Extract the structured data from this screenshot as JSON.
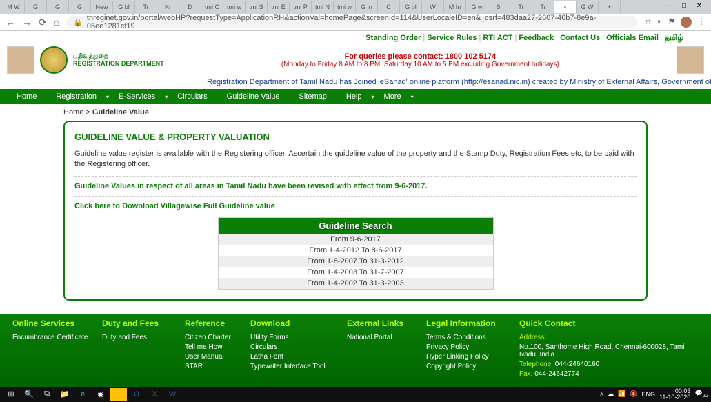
{
  "browser": {
    "tabs": [
      "M W",
      "G",
      "G",
      "G",
      "New",
      "G bl",
      "Tr",
      "Kr",
      "D",
      "tmi C",
      "tmi w",
      "tmi S",
      "tmi E",
      "tmi P",
      "tmi N",
      "tmi w",
      "G in",
      "C",
      "G bl",
      "W",
      "M In",
      "G w",
      "Si",
      "Tr",
      "Tr",
      "×",
      "G W",
      "+"
    ],
    "url": "tnreginet.gov.in/portal/webHP?requestType=ApplicationRH&actionVal=homePage&screenId=114&UserLocaleID=en&_csrf=483daa27-2607-46b7-8e9a-05ee1281cf19"
  },
  "toplinks": {
    "standing": "Standing Order",
    "rules": "Service Rules",
    "rti": "RTI ACT",
    "feedback": "Feedback",
    "contact": "Contact Us",
    "email": "Officials Email",
    "tamil": "தமிழ்"
  },
  "header": {
    "dept1": "பதிவுத்துறை",
    "dept2": "REGISTRATION DEPARTMENT",
    "query": "For queries please contact:",
    "phone": "1800 102 5174",
    "hours": "(Monday to Friday 8 AM to 8 PM, Saturday 10 AM to 5 PM excluding Government holidays)"
  },
  "marquee": "Registration Department of Tamil Nadu has Joined 'eSanad' online platform (http://esanad.nic.in) created by Ministry of External Affairs, Government of India to authenticate a",
  "nav": {
    "home": "Home",
    "registration": "Registration",
    "eservices": "E-Services",
    "circulars": "Circulars",
    "guideline": "Guideline Value",
    "sitemap": "Sitemap",
    "help": "Help",
    "more": "More"
  },
  "breadcrumb": {
    "home": "Home",
    "sep": " > ",
    "current": "Guideline Value"
  },
  "content": {
    "title": "GUIDELINE VALUE & PROPERTY VALUATION",
    "body": "Guideline value register is available with the Registering officer. Ascertain the guideline value of the property and the Stamp Duty, Registration Fees etc, to be paid with the Registering officer.",
    "revised": "Guideline Values in respect of all areas in Tamil Nadu have been revised with effect from 9-6-2017.",
    "download": "Click here to Download Villagewise Full Guideline value",
    "search_header": "Guideline Search",
    "rows": {
      "r1": "From 9-6-2017",
      "r2": "From 1-4-2012 To 8-6-2017",
      "r3": "From 1-8-2007 To 31-3-2012",
      "r4": "From 1-4-2003 To 31-7-2007",
      "r5": "From 1-4-2002 To 31-3-2003"
    }
  },
  "footer": {
    "c1": {
      "title": "Online Services",
      "l1": "Encumbrance Certificate"
    },
    "c2": {
      "title": "Duty and Fees",
      "l1": "Duty and Fees"
    },
    "c3": {
      "title": "Reference",
      "l1": "Citizen Charter",
      "l2": "Tell me How",
      "l3": "User Manual",
      "l4": "STAR"
    },
    "c4": {
      "title": "Download",
      "l1": "Utility Forms",
      "l2": "Circulars",
      "l3": "Latha Font",
      "l4": "Typewriter Interface Tool"
    },
    "c5": {
      "title": "External Links",
      "l1": "National Portal"
    },
    "c6": {
      "title": "Legal Information",
      "l1": "Terms & Conditions",
      "l2": "Privacy Policy",
      "l3": "Hyper Linking Policy",
      "l4": "Copyright Policy"
    },
    "c7": {
      "title": "Quick Contact",
      "addr_label": "Address:",
      "addr": "No.100, Santhome High Road, Chennai-600028, Tamil Nadu, India",
      "tel_label": "Telephone:",
      "tel": " 044-24640160",
      "fax_label": "Fax:",
      "fax": " 044-24642774"
    }
  },
  "taskbar": {
    "time": "00:03",
    "date": "11-10-2020",
    "lang": "ENG",
    "notif": "22"
  }
}
